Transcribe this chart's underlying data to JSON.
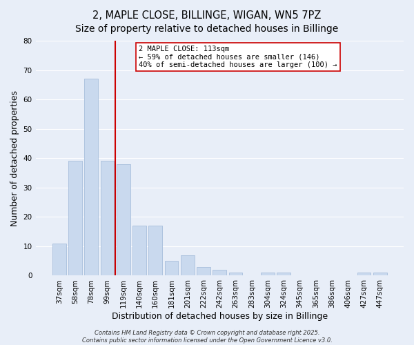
{
  "title": "2, MAPLE CLOSE, BILLINGE, WIGAN, WN5 7PZ",
  "subtitle": "Size of property relative to detached houses in Billinge",
  "xlabel": "Distribution of detached houses by size in Billinge",
  "ylabel": "Number of detached properties",
  "bar_labels": [
    "37sqm",
    "58sqm",
    "78sqm",
    "99sqm",
    "119sqm",
    "140sqm",
    "160sqm",
    "181sqm",
    "201sqm",
    "222sqm",
    "242sqm",
    "263sqm",
    "283sqm",
    "304sqm",
    "324sqm",
    "345sqm",
    "365sqm",
    "386sqm",
    "406sqm",
    "427sqm",
    "447sqm"
  ],
  "bar_values": [
    11,
    39,
    67,
    39,
    38,
    17,
    17,
    5,
    7,
    3,
    2,
    1,
    0,
    1,
    1,
    0,
    0,
    0,
    0,
    1,
    1
  ],
  "bar_color": "#c9d9ee",
  "bar_edge_color": "#a8bedc",
  "vline_color": "#cc0000",
  "vline_pos": 3.5,
  "ylim": [
    0,
    80
  ],
  "yticks": [
    0,
    10,
    20,
    30,
    40,
    50,
    60,
    70,
    80
  ],
  "annotation_text": "2 MAPLE CLOSE: 113sqm\n← 59% of detached houses are smaller (146)\n40% of semi-detached houses are larger (100) →",
  "annotation_box_facecolor": "#ffffff",
  "annotation_box_edgecolor": "#cc0000",
  "footer_line1": "Contains HM Land Registry data © Crown copyright and database right 2025.",
  "footer_line2": "Contains public sector information licensed under the Open Government Licence v3.0.",
  "bg_color": "#e8eef8",
  "plot_bg_color": "#e8eef8",
  "grid_color": "#ffffff",
  "title_fontsize": 10.5,
  "axis_label_fontsize": 9,
  "tick_fontsize": 7.5,
  "annotation_fontsize": 7.5,
  "footer_fontsize": 6
}
